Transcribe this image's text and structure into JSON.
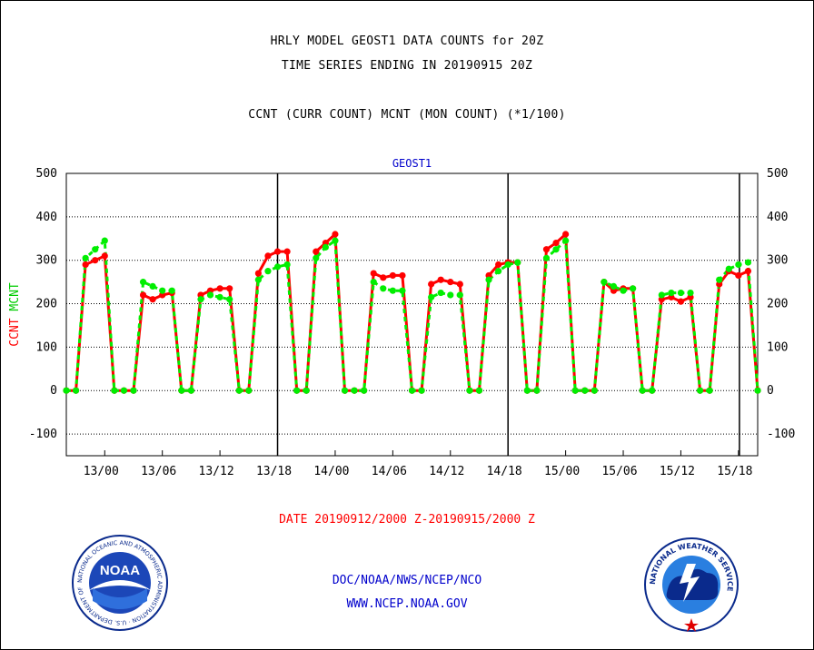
{
  "title1": "HRLY MODEL GEOST1 DATA COUNTS for 20Z",
  "title2": "TIME SERIES ENDING IN 20190915 20Z",
  "title3": "CCNT (CURR COUNT) MCNT (MON COUNT) (*1/100)",
  "date_range": "DATE 20190912/2000 Z-20190915/2000 Z",
  "footer_line1": "DOC/NOAA/NWS/NCEP/NCO",
  "footer_line2": "WWW.NCEP.NOAA.GOV",
  "logo_left_text": "NOAA",
  "logo_left_ring": "NATIONAL OCEANIC AND ATMOSPHERIC ADMINISTRATION · U.S. DEPARTMENT OF COMMERCE ·",
  "logo_right_ring": "NATIONAL WEATHER SERVICE",
  "colors": {
    "ccnt": "#ff0000",
    "mcnt": "#00ee00",
    "panel_title": "#0000cc",
    "date": "#ff0000",
    "footer": "#0000cc"
  },
  "chart_data": {
    "type": "line",
    "panel_title": "GEOST1",
    "ylabel_parts": [
      {
        "text": "CCNT",
        "color": "#ff0000"
      },
      {
        "text": "MCNT",
        "color": "#00cc00"
      }
    ],
    "ylim": [
      -150,
      500
    ],
    "yticks": [
      -100,
      0,
      100,
      200,
      300,
      400,
      500
    ],
    "ytick_labels": [
      "-100",
      "0",
      "100",
      "200",
      "300",
      "400",
      "500"
    ],
    "xlim": [
      0,
      72
    ],
    "xticks": [
      {
        "x": 4,
        "label": "13/00"
      },
      {
        "x": 10,
        "label": "13/06"
      },
      {
        "x": 16,
        "label": "13/12"
      },
      {
        "x": 22,
        "label": "13/18"
      },
      {
        "x": 28,
        "label": "14/00"
      },
      {
        "x": 34,
        "label": "14/06"
      },
      {
        "x": 40,
        "label": "14/12"
      },
      {
        "x": 46,
        "label": "14/18"
      },
      {
        "x": 52,
        "label": "15/00"
      },
      {
        "x": 58,
        "label": "15/06"
      },
      {
        "x": 64,
        "label": "15/12"
      },
      {
        "x": 70,
        "label": "15/18"
      }
    ],
    "day_separators": [
      22,
      46,
      70.1
    ],
    "grid": true,
    "series": [
      {
        "name": "CCNT",
        "color": "#ff0000",
        "values": [
          0,
          0,
          290,
          300,
          310,
          0,
          0,
          0,
          220,
          210,
          220,
          225,
          0,
          0,
          220,
          230,
          235,
          235,
          0,
          0,
          270,
          310,
          320,
          320,
          0,
          0,
          320,
          340,
          360,
          0,
          0,
          0,
          270,
          260,
          265,
          265,
          0,
          0,
          245,
          255,
          250,
          245,
          0,
          0,
          265,
          290,
          295,
          295,
          0,
          0,
          325,
          340,
          360,
          0,
          0,
          0,
          250,
          230,
          235,
          235,
          0,
          0,
          210,
          215,
          205,
          215,
          0,
          0,
          245,
          275,
          265,
          275,
          0
        ]
      },
      {
        "name": "MCNT",
        "color": "#00ee00",
        "values": [
          0,
          0,
          305,
          325,
          345,
          0,
          0,
          0,
          250,
          240,
          230,
          230,
          0,
          0,
          210,
          220,
          215,
          210,
          0,
          0,
          255,
          275,
          285,
          290,
          0,
          0,
          305,
          330,
          345,
          0,
          0,
          0,
          250,
          235,
          230,
          230,
          0,
          0,
          215,
          225,
          220,
          220,
          0,
          0,
          255,
          275,
          290,
          295,
          0,
          0,
          305,
          325,
          345,
          0,
          0,
          0,
          250,
          240,
          230,
          235,
          0,
          0,
          220,
          225,
          225,
          225,
          0,
          0,
          255,
          280,
          290,
          295,
          0
        ]
      }
    ]
  }
}
